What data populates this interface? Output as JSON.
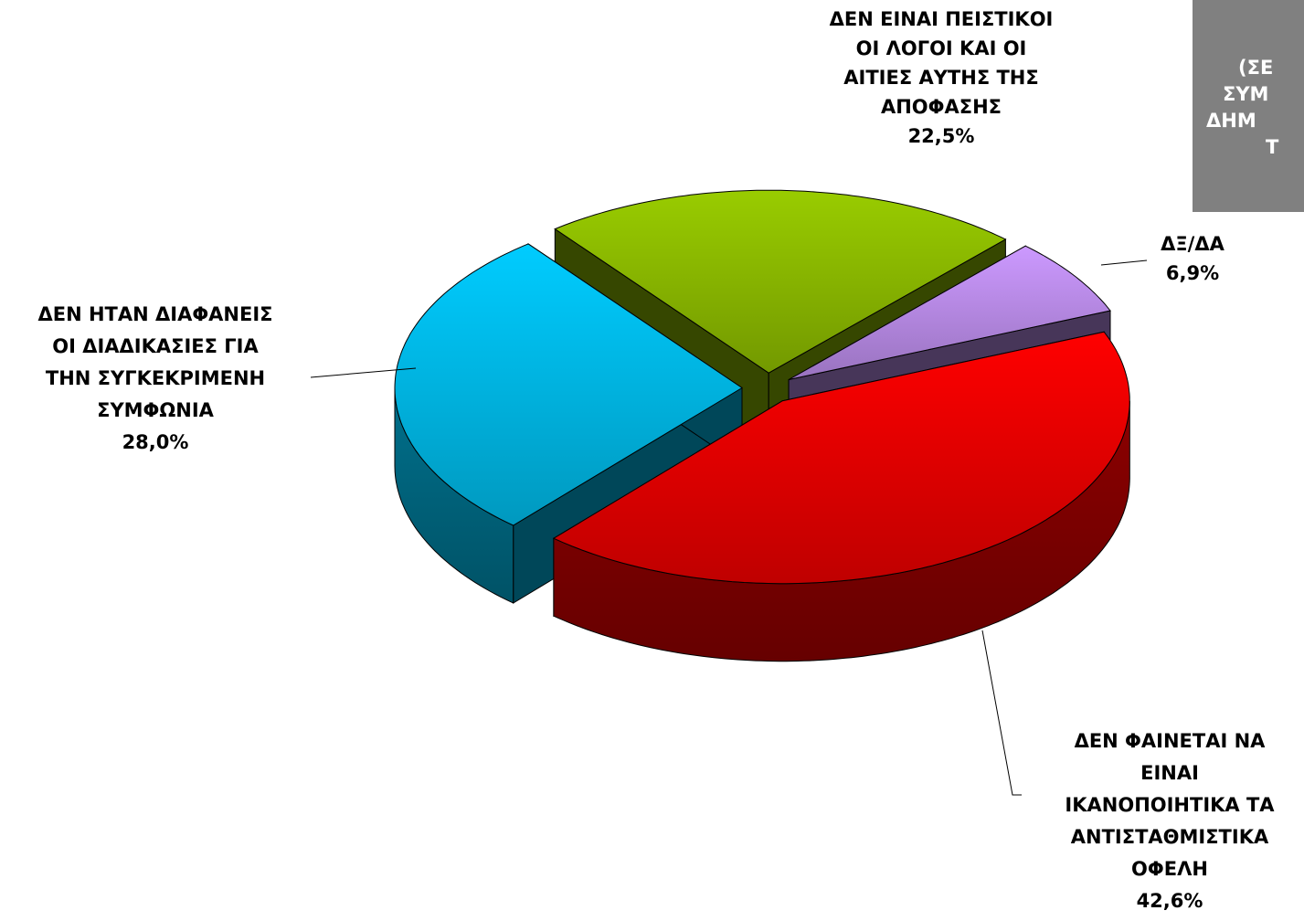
{
  "chart_data": {
    "type": "pie",
    "categories": [
      [
        "ΔΕΝ ΕΙΝΑΙ ΠΕΙΣΤΙΚΟΙ",
        "ΟΙ ΛΟΓΟΙ ΚΑΙ ΟΙ",
        "ΑΙΤΙΕΣ ΑΥΤΗΣ ΤΗΣ",
        "ΑΠΟΦΑΣΗΣ"
      ],
      [
        "ΔΞ/ΔΑ"
      ],
      [
        "ΔΕΝ ΦΑΙΝΕΤΑΙ ΝΑ",
        "ΕΙΝΑΙ",
        "ΙΚΑΝΟΠΟΙΗΤΙΚΑ ΤΑ",
        "ΑΝΤΙΣΤΑΘΜΙΣΤΙΚΑ",
        "ΟΦΕΛΗ"
      ],
      [
        "ΔΕΝ ΗΤΑΝ ΔΙΑΦΑΝΕΙΣ",
        "ΟΙ ΔΙΑΔΙΚΑΣΙΕΣ ΓΙΑ",
        "ΤΗΝ ΣΥΓΚΕΚΡΙΜΕΝΗ",
        "ΣΥΜΦΩΝΙΑ"
      ]
    ],
    "values": [
      22.5,
      6.9,
      42.6,
      28.0
    ],
    "value_labels": [
      "22,5%",
      "6,9%",
      "42,6%",
      "28,0%"
    ],
    "colors": [
      "#99cc00",
      "#cc99ff",
      "#ff0000",
      "#00ccff"
    ],
    "annotation": [
      "(ΣΕ",
      "ΣΥΜ",
      "ΔΗΜ",
      "Τ"
    ]
  }
}
